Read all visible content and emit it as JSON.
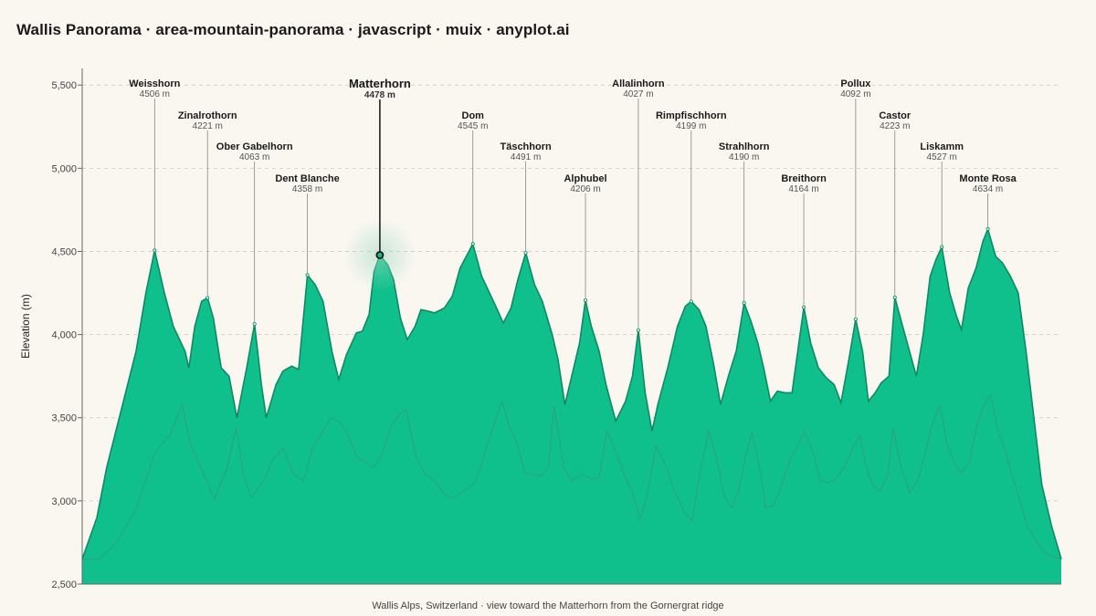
{
  "title": "Wallis Panorama · area-mountain-panorama · javascript · muix · anyplot.ai",
  "chart_data": {
    "type": "area",
    "title": "Wallis Panorama · area-mountain-panorama · javascript · muix · anyplot.ai",
    "xlabel": "Wallis Alps, Switzerland · view toward the Matterhorn from the Gornergrat ridge",
    "ylabel": "Elevation (m)",
    "ylim": [
      2500,
      5600
    ],
    "yticks": [
      2500,
      3000,
      3500,
      4000,
      4500,
      5000,
      5500
    ],
    "ytick_labels": [
      "2,500",
      "3,000",
      "3,500",
      "4,000",
      "4,500",
      "5,000",
      "5,500"
    ],
    "grid": true,
    "x_range": [
      0,
      100
    ],
    "colors": {
      "front": "#10c08c",
      "front_line": "#0d8a63",
      "back_line": "#2e9e7c",
      "highlight": "#0b3d2e"
    },
    "highlight": "Matterhorn",
    "peaks": [
      {
        "name": "Weisshorn",
        "label": "4506 m",
        "x": 7.4,
        "elevation": 4506
      },
      {
        "name": "Zinalrothorn",
        "label": "4221 m",
        "x": 12.8,
        "elevation": 4221
      },
      {
        "name": "Ober Gabelhorn",
        "label": "4063 m",
        "x": 17.6,
        "elevation": 4063
      },
      {
        "name": "Dent Blanche",
        "label": "4358 m",
        "x": 23.0,
        "elevation": 4358
      },
      {
        "name": "Matterhorn",
        "label": "4478 m",
        "x": 30.4,
        "elevation": 4478
      },
      {
        "name": "Dom",
        "label": "4545 m",
        "x": 39.9,
        "elevation": 4545
      },
      {
        "name": "Täschhorn",
        "label": "4491 m",
        "x": 45.3,
        "elevation": 4491
      },
      {
        "name": "Alphubel",
        "label": "4206 m",
        "x": 51.4,
        "elevation": 4206
      },
      {
        "name": "Allalinhorn",
        "label": "4027 m",
        "x": 56.8,
        "elevation": 4027
      },
      {
        "name": "Rimpfischhorn",
        "label": "4199 m",
        "x": 62.2,
        "elevation": 4199
      },
      {
        "name": "Strahlhorn",
        "label": "4190 m",
        "x": 67.6,
        "elevation": 4190
      },
      {
        "name": "Breithorn",
        "label": "4164 m",
        "x": 73.7,
        "elevation": 4164
      },
      {
        "name": "Pollux",
        "label": "4092 m",
        "x": 79.0,
        "elevation": 4092
      },
      {
        "name": "Castor",
        "label": "4223 m",
        "x": 83.0,
        "elevation": 4223
      },
      {
        "name": "Liskamm",
        "label": "4527 m",
        "x": 87.8,
        "elevation": 4527
      },
      {
        "name": "Monte Rosa",
        "label": "4634 m",
        "x": 92.5,
        "elevation": 4634
      }
    ],
    "front_profile": [
      [
        0,
        2650
      ],
      [
        1.5,
        2900
      ],
      [
        2.5,
        3200
      ],
      [
        4,
        3550
      ],
      [
        5.5,
        3900
      ],
      [
        6.5,
        4250
      ],
      [
        7.4,
        4506
      ],
      [
        8.4,
        4250
      ],
      [
        9.3,
        4050
      ],
      [
        10.5,
        3900
      ],
      [
        10.9,
        3800
      ],
      [
        11.5,
        4050
      ],
      [
        12.2,
        4200
      ],
      [
        12.8,
        4221
      ],
      [
        13.4,
        4100
      ],
      [
        14.2,
        3800
      ],
      [
        15,
        3750
      ],
      [
        15.8,
        3500
      ],
      [
        16.8,
        3800
      ],
      [
        17.6,
        4063
      ],
      [
        18.3,
        3700
      ],
      [
        18.8,
        3500
      ],
      [
        19.8,
        3700
      ],
      [
        20.5,
        3780
      ],
      [
        21.4,
        3810
      ],
      [
        22.1,
        3790
      ],
      [
        23.0,
        4358
      ],
      [
        23.8,
        4300
      ],
      [
        24.6,
        4200
      ],
      [
        25.5,
        3900
      ],
      [
        26.2,
        3730
      ],
      [
        27.0,
        3880
      ],
      [
        28.0,
        4010
      ],
      [
        28.6,
        4020
      ],
      [
        29.3,
        4120
      ],
      [
        29.8,
        4380
      ],
      [
        30.4,
        4478
      ],
      [
        31.2,
        4420
      ],
      [
        31.8,
        4330
      ],
      [
        32.5,
        4100
      ],
      [
        33.2,
        3970
      ],
      [
        34.0,
        4050
      ],
      [
        34.6,
        4150
      ],
      [
        35.4,
        4140
      ],
      [
        36.0,
        4130
      ],
      [
        37.0,
        4160
      ],
      [
        37.8,
        4230
      ],
      [
        38.6,
        4400
      ],
      [
        39.9,
        4545
      ],
      [
        40.8,
        4350
      ],
      [
        41.6,
        4250
      ],
      [
        42.4,
        4150
      ],
      [
        43.0,
        4070
      ],
      [
        43.8,
        4160
      ],
      [
        44.5,
        4330
      ],
      [
        45.3,
        4491
      ],
      [
        46.2,
        4300
      ],
      [
        47.0,
        4200
      ],
      [
        48.0,
        4000
      ],
      [
        48.6,
        3850
      ],
      [
        49.3,
        3580
      ],
      [
        50.0,
        3750
      ],
      [
        50.8,
        3950
      ],
      [
        51.4,
        4206
      ],
      [
        52.0,
        4050
      ],
      [
        52.8,
        3900
      ],
      [
        53.5,
        3700
      ],
      [
        54.5,
        3480
      ],
      [
        55.5,
        3600
      ],
      [
        56.2,
        3750
      ],
      [
        56.8,
        4027
      ],
      [
        57.5,
        3650
      ],
      [
        58.2,
        3420
      ],
      [
        58.8,
        3580
      ],
      [
        59.8,
        3800
      ],
      [
        60.8,
        4050
      ],
      [
        61.6,
        4170
      ],
      [
        62.2,
        4199
      ],
      [
        63.0,
        4150
      ],
      [
        63.7,
        4050
      ],
      [
        64.5,
        3820
      ],
      [
        65.2,
        3580
      ],
      [
        66.0,
        3750
      ],
      [
        66.8,
        3900
      ],
      [
        67.6,
        4190
      ],
      [
        68.3,
        4080
      ],
      [
        69.0,
        3950
      ],
      [
        69.6,
        3800
      ],
      [
        70.3,
        3600
      ],
      [
        71.0,
        3660
      ],
      [
        71.8,
        3650
      ],
      [
        72.5,
        3650
      ],
      [
        73.7,
        4164
      ],
      [
        74.4,
        3950
      ],
      [
        75.2,
        3800
      ],
      [
        76.0,
        3740
      ],
      [
        76.8,
        3700
      ],
      [
        77.5,
        3590
      ],
      [
        78.3,
        3850
      ],
      [
        79.0,
        4092
      ],
      [
        79.7,
        3900
      ],
      [
        80.3,
        3600
      ],
      [
        81.0,
        3650
      ],
      [
        81.6,
        3710
      ],
      [
        82.4,
        3750
      ],
      [
        83.0,
        4223
      ],
      [
        83.8,
        4050
      ],
      [
        84.5,
        3900
      ],
      [
        85.2,
        3750
      ],
      [
        85.9,
        4000
      ],
      [
        86.6,
        4350
      ],
      [
        87.2,
        4450
      ],
      [
        87.8,
        4527
      ],
      [
        88.6,
        4250
      ],
      [
        89.3,
        4110
      ],
      [
        89.8,
        4030
      ],
      [
        90.5,
        4280
      ],
      [
        91.3,
        4400
      ],
      [
        92.0,
        4560
      ],
      [
        92.5,
        4634
      ],
      [
        93.3,
        4470
      ],
      [
        94.0,
        4430
      ],
      [
        94.8,
        4350
      ],
      [
        95.6,
        4250
      ],
      [
        96.4,
        3900
      ],
      [
        97.2,
        3500
      ],
      [
        98.0,
        3100
      ],
      [
        99.0,
        2850
      ],
      [
        100,
        2650
      ]
    ],
    "back_profile": [
      [
        0,
        2650
      ],
      [
        1.8,
        2650
      ],
      [
        3.5,
        2750
      ],
      [
        5.5,
        2950
      ],
      [
        7.5,
        3300
      ],
      [
        9,
        3400
      ],
      [
        10.2,
        3580
      ],
      [
        11,
        3350
      ],
      [
        12.5,
        3150
      ],
      [
        13.5,
        3010
      ],
      [
        14.8,
        3200
      ],
      [
        15.7,
        3440
      ],
      [
        16.5,
        3150
      ],
      [
        17.3,
        3020
      ],
      [
        18.5,
        3120
      ],
      [
        19.5,
        3250
      ],
      [
        20.5,
        3320
      ],
      [
        21.6,
        3160
      ],
      [
        22.6,
        3120
      ],
      [
        23.6,
        3330
      ],
      [
        24.5,
        3410
      ],
      [
        25.4,
        3500
      ],
      [
        26.2,
        3480
      ],
      [
        27.0,
        3420
      ],
      [
        28.0,
        3270
      ],
      [
        29.0,
        3230
      ],
      [
        29.8,
        3200
      ],
      [
        30.5,
        3260
      ],
      [
        31.6,
        3460
      ],
      [
        32.4,
        3520
      ],
      [
        33.1,
        3550
      ],
      [
        34.0,
        3280
      ],
      [
        35.0,
        3160
      ],
      [
        36.0,
        3120
      ],
      [
        37.2,
        3030
      ],
      [
        38.0,
        3020
      ],
      [
        39.0,
        3060
      ],
      [
        40.0,
        3100
      ],
      [
        40.8,
        3220
      ],
      [
        41.6,
        3380
      ],
      [
        42.4,
        3520
      ],
      [
        42.9,
        3600
      ],
      [
        43.6,
        3450
      ],
      [
        44.4,
        3350
      ],
      [
        45.2,
        3170
      ],
      [
        46.0,
        3160
      ],
      [
        46.8,
        3150
      ],
      [
        47.6,
        3200
      ],
      [
        48.2,
        3570
      ],
      [
        49.2,
        3200
      ],
      [
        50.0,
        3120
      ],
      [
        51.0,
        3160
      ],
      [
        52.0,
        3130
      ],
      [
        52.8,
        3140
      ],
      [
        53.6,
        3420
      ],
      [
        54.5,
        3300
      ],
      [
        55.3,
        3170
      ],
      [
        56.2,
        3050
      ],
      [
        57.0,
        2890
      ],
      [
        57.6,
        3010
      ],
      [
        58.6,
        3330
      ],
      [
        59.6,
        3210
      ],
      [
        60.5,
        3060
      ],
      [
        61.5,
        2930
      ],
      [
        62.3,
        2880
      ],
      [
        63.0,
        3140
      ],
      [
        64.0,
        3420
      ],
      [
        64.8,
        3250
      ],
      [
        65.6,
        3020
      ],
      [
        66.4,
        2960
      ],
      [
        67.0,
        3050
      ],
      [
        67.8,
        3280
      ],
      [
        68.4,
        3410
      ],
      [
        69.2,
        3200
      ],
      [
        69.8,
        2960
      ],
      [
        70.6,
        2970
      ],
      [
        71.4,
        3090
      ],
      [
        72.3,
        3250
      ],
      [
        73.0,
        3320
      ],
      [
        73.8,
        3420
      ],
      [
        74.6,
        3300
      ],
      [
        75.4,
        3120
      ],
      [
        76.2,
        3110
      ],
      [
        77.0,
        3130
      ],
      [
        77.8,
        3200
      ],
      [
        78.6,
        3300
      ],
      [
        79.4,
        3400
      ],
      [
        80.0,
        3220
      ],
      [
        80.7,
        3100
      ],
      [
        81.5,
        3060
      ],
      [
        82.3,
        3160
      ],
      [
        82.8,
        3430
      ],
      [
        83.6,
        3210
      ],
      [
        84.5,
        3050
      ],
      [
        85.3,
        3120
      ],
      [
        86.0,
        3260
      ],
      [
        86.8,
        3460
      ],
      [
        87.6,
        3580
      ],
      [
        88.3,
        3350
      ],
      [
        89.1,
        3220
      ],
      [
        89.8,
        3170
      ],
      [
        90.6,
        3230
      ],
      [
        91.4,
        3460
      ],
      [
        92.2,
        3590
      ],
      [
        92.8,
        3640
      ],
      [
        93.5,
        3430
      ],
      [
        94.3,
        3300
      ],
      [
        95.0,
        3150
      ],
      [
        95.8,
        3000
      ],
      [
        96.5,
        2850
      ],
      [
        97.5,
        2750
      ],
      [
        98.5,
        2680
      ],
      [
        100,
        2650
      ]
    ]
  }
}
